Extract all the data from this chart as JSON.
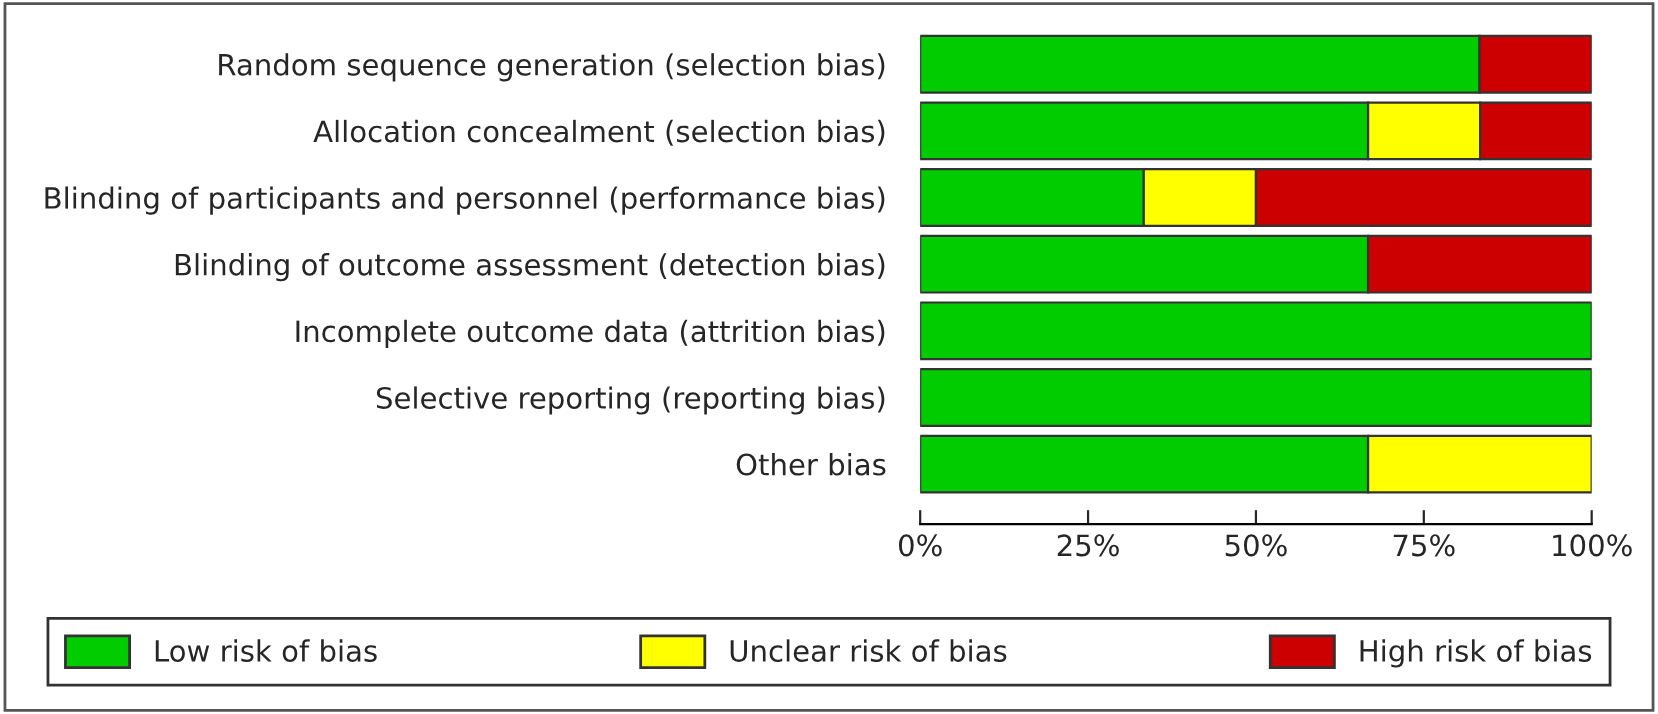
{
  "chart_data": {
    "type": "bar",
    "orientation": "horizontal",
    "stacked": true,
    "categories": [
      "Random sequence generation (selection bias)",
      "Allocation concealment (selection bias)",
      "Blinding of participants and personnel (performance bias)",
      "Blinding of outcome assessment (detection bias)",
      "Incomplete outcome data (attrition bias)",
      "Selective reporting (reporting bias)",
      "Other bias"
    ],
    "series": [
      {
        "name": "Low risk of bias",
        "color": "#00cc00",
        "values": [
          83.3,
          66.7,
          33.3,
          66.7,
          100,
          100,
          66.7
        ]
      },
      {
        "name": "Unclear risk of bias",
        "color": "#ffff00",
        "values": [
          0,
          16.7,
          16.7,
          0,
          0,
          0,
          33.3
        ]
      },
      {
        "name": "High risk of bias",
        "color": "#cc0000",
        "values": [
          16.7,
          16.6,
          50,
          33.3,
          0,
          0,
          0
        ]
      }
    ],
    "xlim": [
      0,
      100
    ],
    "xticks": [
      {
        "value": 0,
        "label": "0%"
      },
      {
        "value": 25,
        "label": "25%"
      },
      {
        "value": 50,
        "label": "50%"
      },
      {
        "value": 75,
        "label": "75%"
      },
      {
        "value": 100,
        "label": "100%"
      }
    ],
    "legend": "bottom",
    "grid": false
  }
}
